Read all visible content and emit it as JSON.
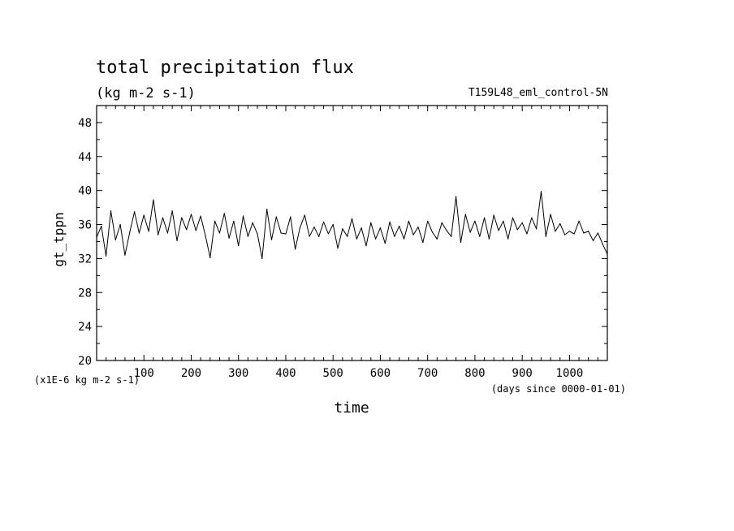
{
  "chart_data": {
    "type": "line",
    "title": "total precipitation flux",
    "subtitle": "(kg m-2 s-1)",
    "run_label": "T159L48_eml_control-5N",
    "xlabel": "time",
    "x_unit_note": "(days since 0000-01-01)",
    "ylabel": "gt_tppn",
    "y_unit_note": "(x1E-6 kg m-2 s-1)",
    "xlim": [
      0,
      1080
    ],
    "ylim": [
      20,
      50
    ],
    "x_ticks": [
      100,
      200,
      300,
      400,
      500,
      600,
      700,
      800,
      900,
      1000
    ],
    "y_ticks": [
      20,
      24,
      28,
      32,
      36,
      40,
      44,
      48
    ],
    "x_tick_labels": [
      "100",
      "200",
      "300",
      "400",
      "500",
      "600",
      "700",
      "800",
      "900",
      "1000"
    ],
    "y_tick_labels": [
      "20",
      "24",
      "28",
      "32",
      "36",
      "40",
      "44",
      "48"
    ],
    "grid": false,
    "series": [
      {
        "color": "#000000",
        "x": [
          0,
          10,
          20,
          30,
          40,
          50,
          60,
          70,
          80,
          90,
          100,
          110,
          120,
          130,
          140,
          150,
          160,
          170,
          180,
          190,
          200,
          210,
          220,
          230,
          240,
          250,
          260,
          270,
          280,
          290,
          300,
          310,
          320,
          330,
          340,
          350,
          360,
          370,
          380,
          390,
          400,
          410,
          420,
          430,
          440,
          450,
          460,
          470,
          480,
          490,
          500,
          510,
          520,
          530,
          540,
          550,
          560,
          570,
          580,
          590,
          600,
          610,
          620,
          630,
          640,
          650,
          660,
          670,
          680,
          690,
          700,
          710,
          720,
          730,
          740,
          750,
          760,
          770,
          780,
          790,
          800,
          810,
          820,
          830,
          840,
          850,
          860,
          870,
          880,
          890,
          900,
          910,
          920,
          930,
          940,
          950,
          960,
          970,
          980,
          990,
          1000,
          1010,
          1020,
          1030,
          1040,
          1050,
          1060,
          1070,
          1080
        ],
        "y": [
          34.5,
          35.8,
          32.3,
          37.6,
          34.2,
          36.0,
          32.4,
          35.1,
          37.5,
          35.0,
          37.1,
          35.2,
          38.9,
          34.8,
          36.8,
          35.0,
          37.6,
          34.1,
          36.8,
          35.4,
          37.2,
          35.3,
          37.0,
          34.7,
          32.1,
          36.4,
          35.0,
          37.3,
          34.4,
          36.4,
          33.5,
          37.0,
          34.6,
          36.2,
          34.9,
          32.0,
          37.8,
          34.2,
          36.9,
          35.0,
          34.9,
          36.9,
          33.1,
          35.6,
          37.1,
          34.6,
          35.7,
          34.6,
          36.3,
          34.9,
          36.0,
          33.2,
          35.5,
          34.6,
          36.7,
          34.3,
          35.6,
          33.5,
          36.2,
          34.3,
          35.6,
          33.8,
          36.3,
          34.6,
          35.8,
          34.3,
          36.4,
          34.8,
          35.7,
          33.9,
          36.4,
          35.1,
          34.3,
          36.2,
          35.3,
          34.6,
          39.3,
          33.9,
          37.2,
          35.1,
          36.4,
          34.6,
          36.8,
          34.3,
          37.1,
          35.3,
          36.4,
          34.3,
          36.8,
          35.4,
          36.2,
          34.9,
          36.8,
          35.5,
          39.9,
          34.6,
          37.2,
          35.2,
          36.1,
          34.8,
          35.2,
          34.9,
          36.4,
          35.0,
          35.2,
          34.1,
          35.0,
          33.7,
          32.5
        ]
      }
    ]
  }
}
